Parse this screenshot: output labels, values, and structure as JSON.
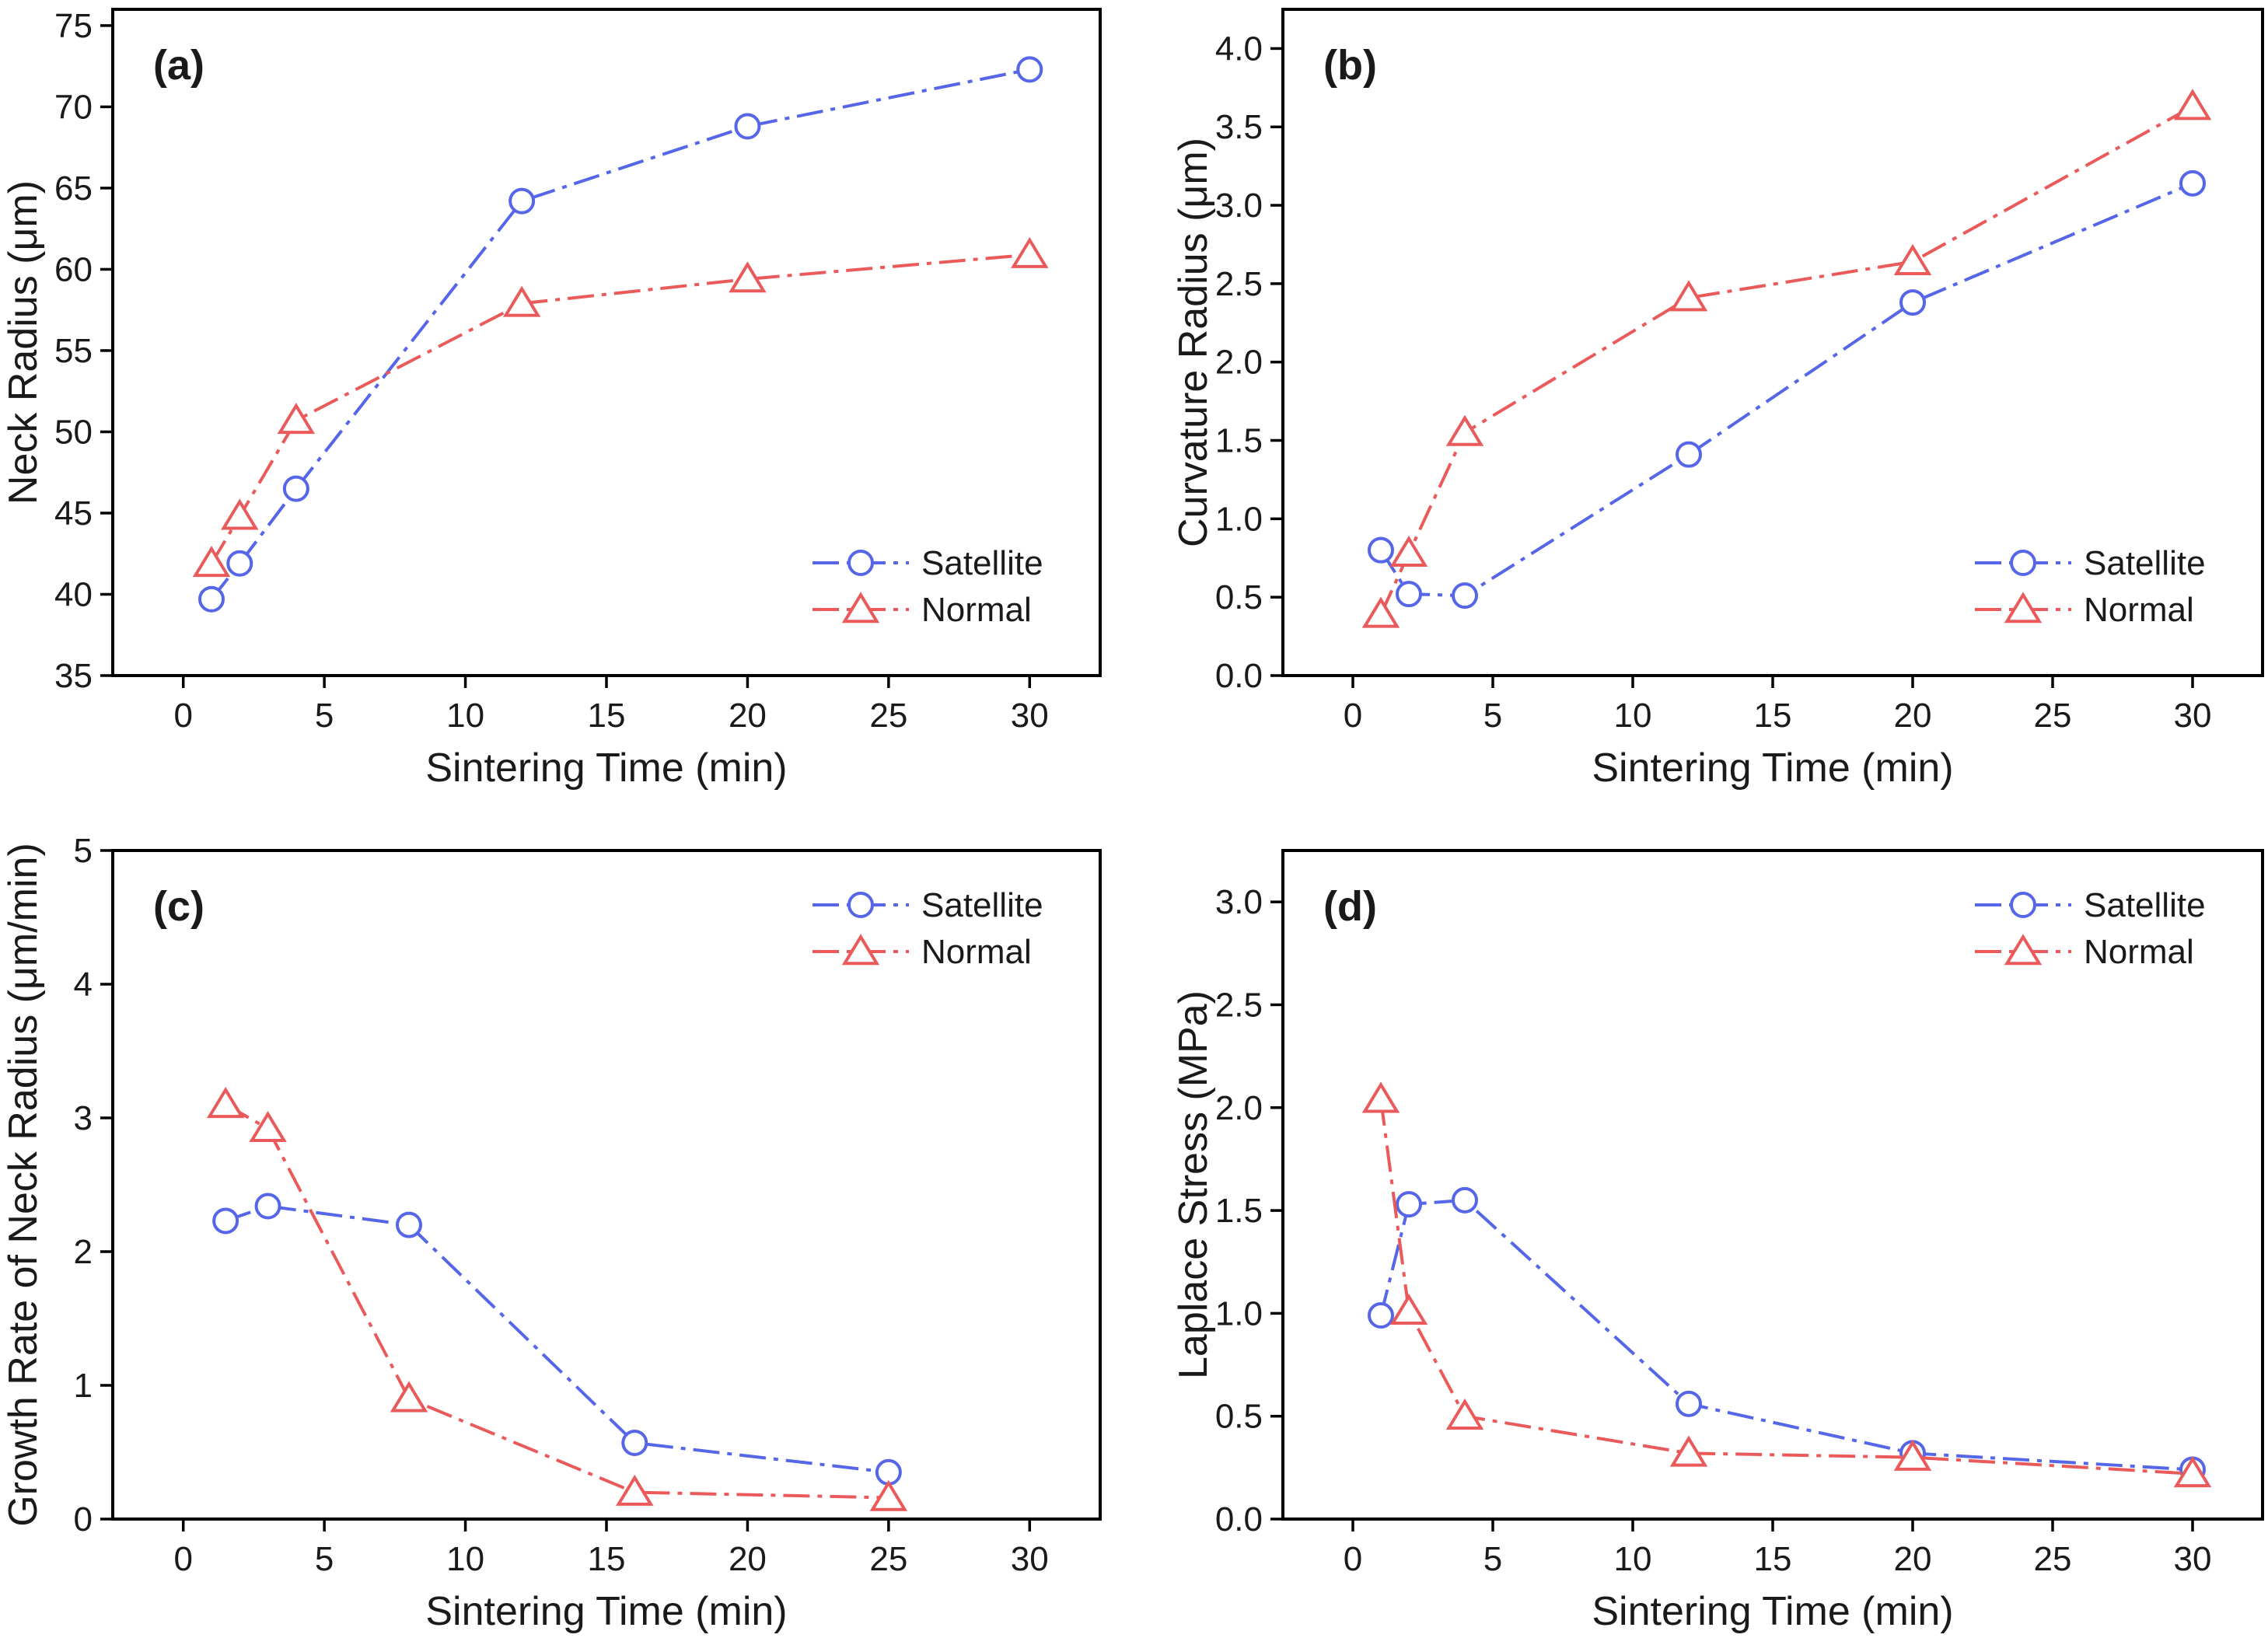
{
  "figure": {
    "colors": {
      "satellite": "#5566e8",
      "normal": "#ea5a5a",
      "axis": "#000000"
    }
  },
  "chart_data": [
    {
      "panel": "(a)",
      "type": "line",
      "xlabel": "Sintering Time (min)",
      "ylabel": "Neck Radius (μm)",
      "xlim": [
        -2.5,
        32.5
      ],
      "ylim": [
        35,
        76
      ],
      "xticks": [
        0,
        5,
        10,
        15,
        20,
        25,
        30
      ],
      "yticks": [
        35,
        40,
        45,
        50,
        55,
        60,
        65,
        70,
        75
      ],
      "xtick_labels": [
        "0",
        "5",
        "10",
        "15",
        "20",
        "25",
        "30"
      ],
      "ytick_labels": [
        "35",
        "40",
        "45",
        "50",
        "55",
        "60",
        "65",
        "70",
        "75"
      ],
      "legend": "bottom-right",
      "series": [
        {
          "name": "Satellite",
          "marker": "circle",
          "color": "#5566e8",
          "x": [
            1,
            2,
            4,
            12,
            20,
            30
          ],
          "y": [
            39.7,
            41.9,
            46.5,
            64.2,
            68.8,
            72.3
          ]
        },
        {
          "name": "Normal",
          "marker": "triangle",
          "color": "#ea5a5a",
          "x": [
            1,
            2,
            4,
            12,
            20,
            30
          ],
          "y": [
            41.9,
            44.8,
            50.7,
            57.9,
            59.4,
            60.9
          ]
        }
      ]
    },
    {
      "panel": "(b)",
      "type": "line",
      "xlabel": "Sintering Time (min)",
      "ylabel": "Curvature  Radius (μm)",
      "xlim": [
        -2.5,
        32.5
      ],
      "ylim": [
        0,
        4.25
      ],
      "xticks": [
        0,
        5,
        10,
        15,
        20,
        25,
        30
      ],
      "yticks": [
        0,
        0.5,
        1.0,
        1.5,
        2.0,
        2.5,
        3.0,
        3.5,
        4.0
      ],
      "xtick_labels": [
        "0",
        "5",
        "10",
        "15",
        "20",
        "25",
        "30"
      ],
      "ytick_labels": [
        "0.0",
        "0.5",
        "1.0",
        "1.5",
        "2.0",
        "2.5",
        "3.0",
        "3.5",
        "4.0"
      ],
      "legend": "bottom-right",
      "series": [
        {
          "name": "Satellite",
          "marker": "circle",
          "color": "#5566e8",
          "x": [
            1,
            2,
            4,
            12,
            20,
            30
          ],
          "y": [
            0.8,
            0.52,
            0.51,
            1.41,
            2.38,
            3.14
          ]
        },
        {
          "name": "Normal",
          "marker": "triangle",
          "color": "#ea5a5a",
          "x": [
            1,
            2,
            4,
            12,
            20,
            30
          ],
          "y": [
            0.39,
            0.78,
            1.55,
            2.41,
            2.64,
            3.63
          ]
        }
      ]
    },
    {
      "panel": "(c)",
      "type": "line",
      "xlabel": "Sintering Time (min)",
      "ylabel": "Growth Rate of Neck Radius (μm/min)",
      "xlim": [
        -2.5,
        32.5
      ],
      "ylim": [
        0,
        5
      ],
      "xticks": [
        0,
        5,
        10,
        15,
        20,
        25,
        30
      ],
      "yticks": [
        0,
        1,
        2,
        3,
        4,
        5
      ],
      "xtick_labels": [
        "0",
        "5",
        "10",
        "15",
        "20",
        "25",
        "30"
      ],
      "ytick_labels": [
        "0",
        "1",
        "2",
        "3",
        "4",
        "5"
      ],
      "legend": "top-right",
      "series": [
        {
          "name": "Satellite",
          "marker": "circle",
          "color": "#5566e8",
          "x": [
            1.5,
            3,
            8,
            16,
            25
          ],
          "y": [
            2.23,
            2.34,
            2.2,
            0.57,
            0.35
          ]
        },
        {
          "name": "Normal",
          "marker": "triangle",
          "color": "#ea5a5a",
          "x": [
            1.5,
            3,
            8,
            16,
            25
          ],
          "y": [
            3.1,
            2.92,
            0.9,
            0.2,
            0.16
          ]
        }
      ]
    },
    {
      "panel": "(d)",
      "type": "line",
      "xlabel": "Sintering Time (min)",
      "ylabel": "Laplace Stress (MPa)",
      "xlim": [
        -2.5,
        32.5
      ],
      "ylim": [
        0,
        3.25
      ],
      "xticks": [
        0,
        5,
        10,
        15,
        20,
        25,
        30
      ],
      "yticks": [
        0,
        0.5,
        1.0,
        1.5,
        2.0,
        2.5,
        3.0
      ],
      "xtick_labels": [
        "0",
        "5",
        "10",
        "15",
        "20",
        "25",
        "30"
      ],
      "ytick_labels": [
        "0.0",
        "0.5",
        "1.0",
        "1.5",
        "2.0",
        "2.5",
        "3.0"
      ],
      "legend": "top-right",
      "series": [
        {
          "name": "Satellite",
          "marker": "circle",
          "color": "#5566e8",
          "x": [
            1,
            2,
            4,
            12,
            20,
            30
          ],
          "y": [
            0.99,
            1.53,
            1.55,
            0.56,
            0.32,
            0.24
          ]
        },
        {
          "name": "Normal",
          "marker": "triangle",
          "color": "#ea5a5a",
          "x": [
            1,
            2,
            4,
            12,
            20,
            30
          ],
          "y": [
            2.04,
            1.01,
            0.5,
            0.32,
            0.3,
            0.22
          ]
        }
      ]
    }
  ]
}
